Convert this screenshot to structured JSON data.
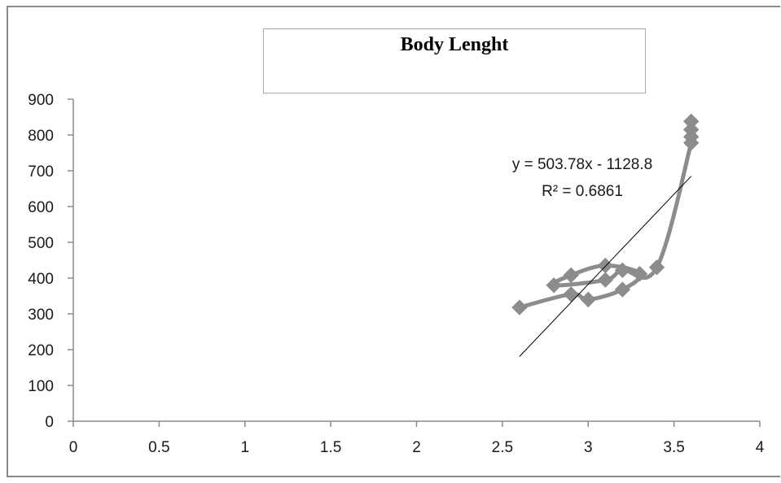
{
  "chart_data": {
    "type": "scatter",
    "title": "Body Lenght",
    "xlabel": "",
    "ylabel": "",
    "xlim": [
      0,
      4
    ],
    "ylim": [
      0,
      900
    ],
    "x_ticks": [
      0,
      0.5,
      1,
      1.5,
      2,
      2.5,
      3,
      3.5,
      4
    ],
    "x_tick_labels": [
      "0",
      "0.5",
      "1",
      "1.5",
      "2",
      "2.5",
      "3",
      "3.5",
      "4"
    ],
    "y_ticks": [
      0,
      100,
      200,
      300,
      400,
      500,
      600,
      700,
      800,
      900
    ],
    "y_tick_labels": [
      "0",
      "100",
      "200",
      "300",
      "400",
      "500",
      "600",
      "700",
      "800",
      "900"
    ],
    "grid": false,
    "legend": "none",
    "series": [
      {
        "marker": "diamond",
        "connected": true,
        "color": "#8c8c8c",
        "points": [
          {
            "x": 2.6,
            "y": 318
          },
          {
            "x": 2.9,
            "y": 355
          },
          {
            "x": 3.0,
            "y": 340
          },
          {
            "x": 3.2,
            "y": 368
          },
          {
            "x": 3.3,
            "y": 412
          },
          {
            "x": 3.1,
            "y": 435
          },
          {
            "x": 2.9,
            "y": 408
          },
          {
            "x": 2.8,
            "y": 380
          },
          {
            "x": 3.1,
            "y": 395
          },
          {
            "x": 3.2,
            "y": 422
          },
          {
            "x": 3.4,
            "y": 430
          },
          {
            "x": 3.6,
            "y": 778
          },
          {
            "x": 3.6,
            "y": 795
          },
          {
            "x": 3.6,
            "y": 815
          },
          {
            "x": 3.6,
            "y": 838
          }
        ]
      }
    ],
    "trendline": {
      "type": "linear",
      "slope": 503.78,
      "intercept": -1128.8,
      "x_range": [
        2.6,
        3.6
      ],
      "color": "#000000",
      "equation_label": "y = 503.78x - 1128.8",
      "r2_label": "R² = 0.6861"
    }
  }
}
